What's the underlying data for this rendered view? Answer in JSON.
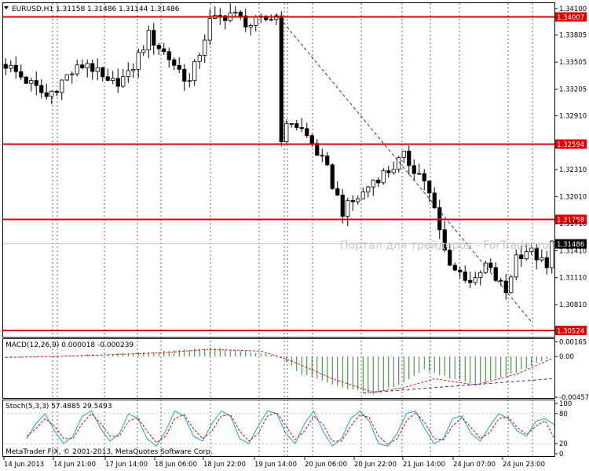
{
  "header": {
    "symbol_line": "EURUSD,H1  1.31158  1.31486  1.31144  1.31486"
  },
  "watermark": "Портал для трейдеров - ForTrader.ru",
  "copyright": "MetaTrader FIX, © 2001-2013, MetaQuotes Software Corp.",
  "colors": {
    "background": "#ffffff",
    "axis": "#000000",
    "grid": "#000000",
    "candle": "#000000",
    "level": "#e00000",
    "trendline": "#1a1aa8",
    "macd_hist": "#2f7d2f",
    "macd_signal": "#e00000",
    "stoch_main": "#1aa7b8",
    "stoch_signal": "#e00000"
  },
  "chart_data": [
    {
      "type": "candlestick",
      "panel": "price",
      "title": "EURUSD,H1",
      "ylim": [
        1.30445,
        1.3416
      ],
      "yticks": [
        "1.34100",
        "1.33805",
        "1.33505",
        "1.33205",
        "1.32910",
        "1.32310",
        "1.32010",
        "1.31710",
        "1.31410",
        "1.31110",
        "1.30810"
      ],
      "xticks": [
        "14 Jun 2013",
        "14 Jun 21:00",
        "17 Jun 14:00",
        "18 Jun 06:00",
        "18 Jun 22:00",
        "19 Jun 14:00",
        "20 Jun 06:00",
        "20 Jun 22:00",
        "21 Jun 14:00",
        "24 Jun 07:00",
        "24 Jun 23:00"
      ],
      "levels": [
        {
          "value": 1.34007,
          "label": "1.34007"
        },
        {
          "value": 1.32594,
          "label": "1.32594"
        },
        {
          "value": 1.31758,
          "label": "1.31758"
        },
        {
          "value": 1.30524,
          "label": "1.30524"
        }
      ],
      "current_price": {
        "value": 1.31486,
        "label": "1.31486"
      },
      "trendline": {
        "from": {
          "bar": 53,
          "price": 1.3404
        },
        "to": {
          "bar": 103,
          "price": 1.3062
        }
      },
      "close_path": [
        [
          0,
          1.3348
        ],
        [
          4,
          1.333
        ],
        [
          8,
          1.3312
        ],
        [
          12,
          1.3335
        ],
        [
          16,
          1.335
        ],
        [
          20,
          1.3325
        ],
        [
          24,
          1.3335
        ],
        [
          28,
          1.338
        ],
        [
          32,
          1.3355
        ],
        [
          36,
          1.3328
        ],
        [
          40,
          1.3395
        ],
        [
          44,
          1.3405
        ],
        [
          48,
          1.3392
        ],
        [
          50,
          1.3396
        ],
        [
          53,
          1.3402
        ],
        [
          54,
          1.3268
        ],
        [
          56,
          1.3285
        ],
        [
          58,
          1.3275
        ],
        [
          60,
          1.326
        ],
        [
          63,
          1.323
        ],
        [
          66,
          1.3185
        ],
        [
          70,
          1.3205
        ],
        [
          72,
          1.322
        ],
        [
          75,
          1.323
        ],
        [
          78,
          1.3245
        ],
        [
          82,
          1.322
        ],
        [
          84,
          1.3185
        ],
        [
          86,
          1.314
        ],
        [
          88,
          1.312
        ],
        [
          92,
          1.3105
        ],
        [
          94,
          1.3125
        ],
        [
          96,
          1.311
        ],
        [
          98,
          1.3095
        ],
        [
          100,
          1.3135
        ],
        [
          102,
          1.3142
        ],
        [
          104,
          1.3135
        ],
        [
          106,
          1.312
        ],
        [
          107,
          1.3148
        ]
      ]
    },
    {
      "type": "histogram",
      "panel": "macd",
      "title": "MACD(12,26,9) 0.000018 -0.000239",
      "ylim": [
        -0.00475,
        0.00195
      ],
      "yticks": [
        "0.00165",
        "0.00",
        "-0.00457"
      ],
      "series": [
        {
          "name": "MACD",
          "kind": "histogram",
          "path": [
            [
              0,
              -0.0002
            ],
            [
              10,
              0.0001
            ],
            [
              20,
              0.0002
            ],
            [
              30,
              0.0006
            ],
            [
              40,
              0.001
            ],
            [
              50,
              0.0004
            ],
            [
              53,
              0.0002
            ],
            [
              58,
              -0.002
            ],
            [
              66,
              -0.0035
            ],
            [
              72,
              -0.0042
            ],
            [
              78,
              -0.003
            ],
            [
              82,
              -0.0015
            ],
            [
              86,
              -0.0022
            ],
            [
              92,
              -0.0032
            ],
            [
              100,
              -0.0018
            ],
            [
              107,
              1.8e-05
            ]
          ]
        },
        {
          "name": "Signal",
          "kind": "line",
          "path": [
            [
              0,
              -0.0001
            ],
            [
              10,
              0.0
            ],
            [
              20,
              0.0002
            ],
            [
              30,
              0.0004
            ],
            [
              40,
              0.0008
            ],
            [
              50,
              0.0006
            ],
            [
              56,
              -0.0005
            ],
            [
              64,
              -0.0025
            ],
            [
              72,
              -0.004
            ],
            [
              78,
              -0.0035
            ],
            [
              84,
              -0.0025
            ],
            [
              92,
              -0.0032
            ],
            [
              100,
              -0.002
            ],
            [
              107,
              -0.000239
            ]
          ]
        }
      ],
      "trendline": {
        "from": {
          "bar": 70,
          "value": -0.0041
        },
        "to": {
          "bar": 107,
          "value": -0.0025
        }
      }
    },
    {
      "type": "line",
      "panel": "stochastic",
      "title": "Stoch(5,3,3) 57.4885 29.5493",
      "ylim": [
        0,
        100
      ],
      "yticks": [
        "100",
        "80",
        "20",
        "0"
      ],
      "series": [
        {
          "name": "Main",
          "values": [
            30,
            60,
            80,
            45,
            20,
            35,
            75,
            85,
            50,
            25,
            40,
            80,
            70,
            30,
            15,
            45,
            85,
            75,
            35,
            25,
            60,
            85,
            75,
            30,
            20,
            55,
            85,
            80,
            40,
            20,
            60,
            85,
            45,
            15,
            30,
            70,
            85,
            65,
            20,
            15,
            40,
            80,
            85,
            50,
            20,
            30,
            70,
            75,
            40,
            25,
            55,
            80,
            70,
            45,
            35,
            65,
            70,
            57.4885
          ]
        },
        {
          "name": "Signal",
          "values": [
            35,
            50,
            70,
            55,
            30,
            30,
            60,
            80,
            60,
            35,
            35,
            65,
            72,
            45,
            22,
            35,
            70,
            78,
            50,
            30,
            45,
            75,
            78,
            45,
            25,
            40,
            75,
            82,
            55,
            28,
            45,
            75,
            58,
            25,
            25,
            55,
            78,
            72,
            35,
            18,
            30,
            65,
            82,
            62,
            30,
            28,
            55,
            72,
            52,
            30,
            42,
            70,
            73,
            52,
            38,
            55,
            66,
            29.5493
          ]
        }
      ]
    }
  ]
}
